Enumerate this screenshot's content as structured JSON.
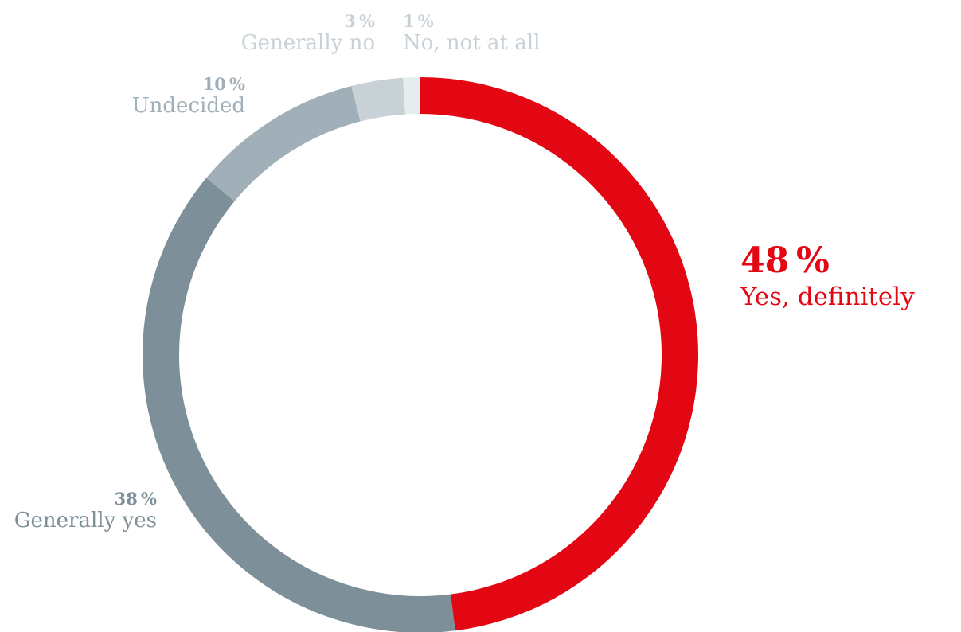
{
  "chart_data": {
    "type": "pie",
    "variant": "donut",
    "start_angle_deg": 0,
    "direction": "clockwise",
    "slices": [
      {
        "label": "Yes, definitely",
        "value": 48,
        "value_label": "48 %",
        "color": "#e30613"
      },
      {
        "label": "Generally yes",
        "value": 38,
        "value_label": "38 %",
        "color": "#7d8f98"
      },
      {
        "label": "Undecided",
        "value": 10,
        "value_label": "10 %",
        "color": "#a1b0b8"
      },
      {
        "label": "Generally no",
        "value": 3,
        "value_label": "3 %",
        "color": "#c7d1d6"
      },
      {
        "label": "No, not at all",
        "value": 1,
        "value_label": "1 %",
        "color": "#e7ecee"
      }
    ]
  },
  "label_colors": {
    "Yes, definitely": "#e30613",
    "Generally yes": "#7d8f98",
    "Undecided": "#a1b0b8",
    "Generally no": "#c7d1d6",
    "No, not at all": "#c7d1d6"
  }
}
